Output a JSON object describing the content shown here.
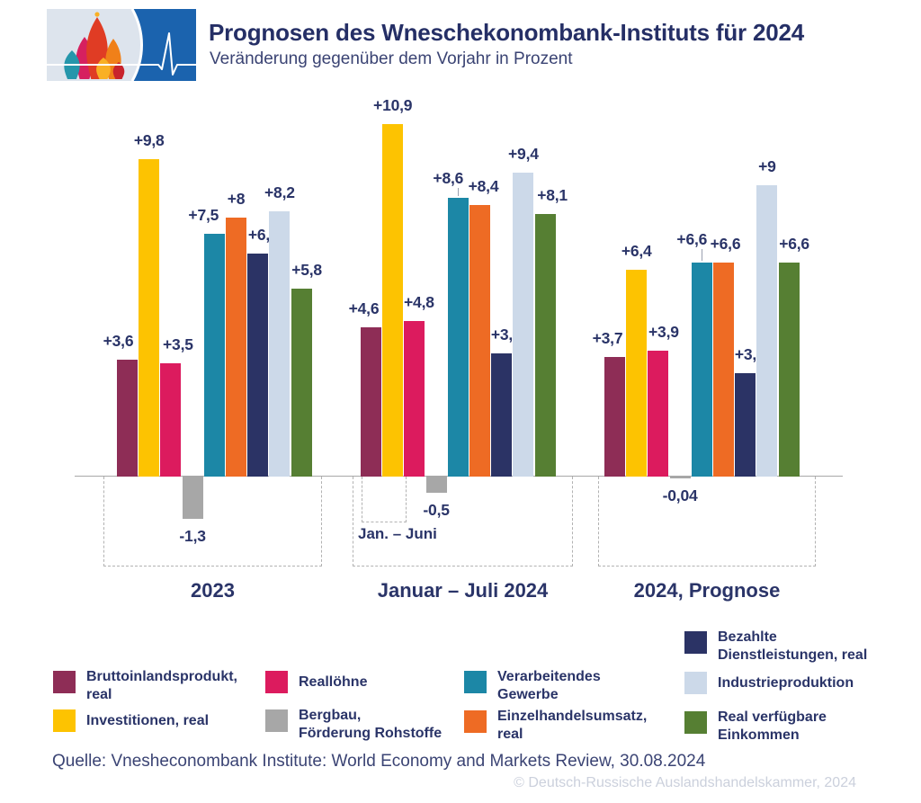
{
  "header": {
    "title": "Prognosen des Wneschekonombank-Instituts für 2024",
    "subtitle": "Veränderung gegenüber dem Vorjahr in Prozent"
  },
  "chart_data": {
    "type": "bar",
    "title": "Prognosen des Wneschekonombank-Instituts für 2024",
    "ylabel": "Veränderung gegenüber dem Vorjahr in Prozent",
    "grid": false,
    "legend_position": "bottom",
    "ylim": [
      -1.5,
      11
    ],
    "categories": [
      "2023",
      "Januar – Juli 2024",
      "2024, Prognose"
    ],
    "annotation": "Jan. – Juni",
    "series": [
      {
        "key": "bip",
        "name": "Bruttoinlandsprodukt, real",
        "color": "#8e2d56",
        "values": [
          3.6,
          4.6,
          3.7
        ],
        "labels": [
          "+3,6",
          "+4,6",
          "+3,7"
        ]
      },
      {
        "key": "investitionen",
        "name": "Investitionen, real",
        "color": "#fdc301",
        "values": [
          9.8,
          10.9,
          6.4
        ],
        "labels": [
          "+9,8",
          "+10,9",
          "+6,4"
        ]
      },
      {
        "key": "realloehne",
        "name": "Reallöhne",
        "color": "#dc1b5e",
        "values": [
          3.5,
          4.8,
          3.9
        ],
        "labels": [
          "+3,5",
          "+4,8",
          "+3,9"
        ]
      },
      {
        "key": "bergbau",
        "name": "Bergbau, Förderung Rohstoffe",
        "color": "#a7a7a7",
        "values": [
          -1.3,
          -0.5,
          -0.04
        ],
        "labels": [
          "-1,3",
          "-0,5",
          "-0,04"
        ]
      },
      {
        "key": "verarbeitendes-gewerbe",
        "name": "Verarbeitendes Gewerbe",
        "color": "#1c87a6",
        "values": [
          7.5,
          8.6,
          6.6
        ],
        "labels": [
          "+7,5",
          "+8,6",
          "+6,6"
        ]
      },
      {
        "key": "einzelhandel",
        "name": "Einzelhandelsumsatz, real",
        "color": "#ee6b24",
        "values": [
          8,
          8.4,
          6.6
        ],
        "labels": [
          "+8",
          "+8,4",
          "+6,6"
        ]
      },
      {
        "key": "dienstleistungen",
        "name": "Bezahlte Dienstleistungen, real",
        "color": "#2b3365",
        "values": [
          6.9,
          3.8,
          3.2
        ],
        "labels": [
          "+6,9",
          "+3,8",
          "+3,2"
        ]
      },
      {
        "key": "industrieproduktion",
        "name": "Industrieproduktion",
        "color": "#ccd9e9",
        "values": [
          8.2,
          9.4,
          9
        ],
        "labels": [
          "+8,2",
          "+9,4",
          "+9"
        ]
      },
      {
        "key": "einkommen",
        "name": "Real verfügbare Einkommen",
        "color": "#567f33",
        "values": [
          5.8,
          8.1,
          6.6
        ],
        "labels": [
          "+5,8",
          "+8,1",
          "+6,6"
        ]
      }
    ]
  },
  "legend": {
    "items": [
      {
        "key": "bip",
        "label": "Bruttoinlandsprodukt,\nreal",
        "color": "#8e2d56"
      },
      {
        "key": "investitionen",
        "label": "Investitionen, real",
        "color": "#fdc301"
      },
      {
        "key": "realloehne",
        "label": "Reallöhne",
        "color": "#dc1b5e"
      },
      {
        "key": "bergbau",
        "label": "Bergbau,\nFörderung Rohstoffe",
        "color": "#a7a7a7"
      },
      {
        "key": "verarbeitendes-gewerbe",
        "label": "Verarbeitendes\nGewerbe",
        "color": "#1c87a6"
      },
      {
        "key": "einzelhandel",
        "label": "Einzelhandelsumsatz,\nreal",
        "color": "#ee6b24"
      },
      {
        "key": "dienstleistungen",
        "label": "Bezahlte\nDienstleistungen, real",
        "color": "#2b3365"
      },
      {
        "key": "industrieproduktion",
        "label": "Industrieproduktion",
        "color": "#ccd9e9"
      },
      {
        "key": "einkommen",
        "label": "Real verfügbare\nEinkommen",
        "color": "#567f33"
      }
    ]
  },
  "footer": {
    "source": "Quelle: Vnesheconombank Institute: World Economy and Markets Review, 30.08.2024",
    "watermark": "© Deutsch-Russische Auslandshandelskammer, 2024"
  },
  "colors": {
    "title_text": "#252f66",
    "value_text": "#2a3468",
    "axis": "#a8a8a8",
    "dashed_border": "#b2b2b2",
    "logo_light": "#dde4ed",
    "logo_blue": "#1b63ae",
    "watermark_text": "#cbd0dc"
  }
}
